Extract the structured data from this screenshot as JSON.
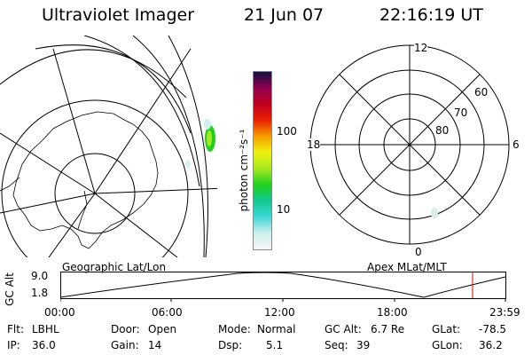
{
  "header": {
    "instrument": "Ultraviolet Imager",
    "date": "21 Jun 07",
    "time": "22:16:19 UT"
  },
  "left_panel": {
    "caption": "Geographic Lat/Lon"
  },
  "colorbar": {
    "unit_label": "photon cm⁻²s⁻¹",
    "ticks": [
      "100",
      "10"
    ],
    "scale": "log",
    "colors": [
      "#f4f4f4",
      "#d0f0f0",
      "#40d8d8",
      "#10c890",
      "#20d020",
      "#a8e820",
      "#f0f010",
      "#f8a000",
      "#e82000",
      "#c00020",
      "#900050",
      "#101040"
    ]
  },
  "right_panel": {
    "caption": "Apex MLat/MLT",
    "mlt_labels": {
      "top": "12",
      "bottom": "0",
      "left": "18",
      "right": "6"
    },
    "lat_labels": [
      "60",
      "70",
      "80"
    ]
  },
  "timeline": {
    "y_axis_label": "GC Alt",
    "y_ticks": [
      "9.0",
      "1.8"
    ],
    "x_ticks": [
      "00:00",
      "06:00",
      "12:00",
      "18:00",
      "23:59"
    ],
    "current_time_marker_color": "#e00000"
  },
  "status": {
    "flt_label": "Flt:",
    "flt_value": "LBHL",
    "ip_label": "IP:",
    "ip_value": "36.0",
    "door_label": "Door:",
    "door_value": "Open",
    "gain_label": "Gain:",
    "gain_value": "14",
    "mode_label": "Mode:",
    "mode_value": "Normal",
    "dsp_label": "Dsp:",
    "dsp_value": "5.1",
    "gcalt_label": "GC Alt:",
    "gcalt_value": "6.7 Re",
    "seq_label": "Seq:",
    "seq_value": "39",
    "glat_label": "GLat:",
    "glat_value": "-78.5",
    "glon_label": "GLon:",
    "glon_value": "36.2"
  }
}
